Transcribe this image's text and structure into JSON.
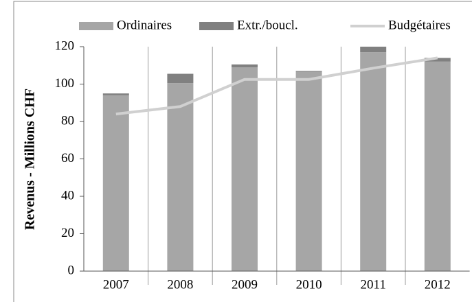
{
  "chart_data": {
    "type": "bar",
    "y_label": "Revenus - Millions CHF",
    "categories": [
      "2007",
      "2008",
      "2009",
      "2010",
      "2011",
      "2012"
    ],
    "series": [
      {
        "name": "Ordinaires",
        "color": "#a6a6a6",
        "type": "bar",
        "values": [
          94,
          100.5,
          109,
          106.5,
          117,
          112
        ]
      },
      {
        "name": "Extr./boucl.",
        "color": "#808080",
        "type": "bar",
        "values": [
          1,
          5,
          1.5,
          0.5,
          3,
          2
        ]
      },
      {
        "name": "Budgétaires",
        "color": "#d0d0d0",
        "type": "line",
        "values": [
          84,
          88,
          102.5,
          102.5,
          108.5,
          114
        ]
      }
    ],
    "stacked": true,
    "ylim": [
      0,
      120
    ],
    "yticks": [
      0,
      20,
      40,
      60,
      80,
      100,
      120
    ],
    "legend": "top"
  }
}
